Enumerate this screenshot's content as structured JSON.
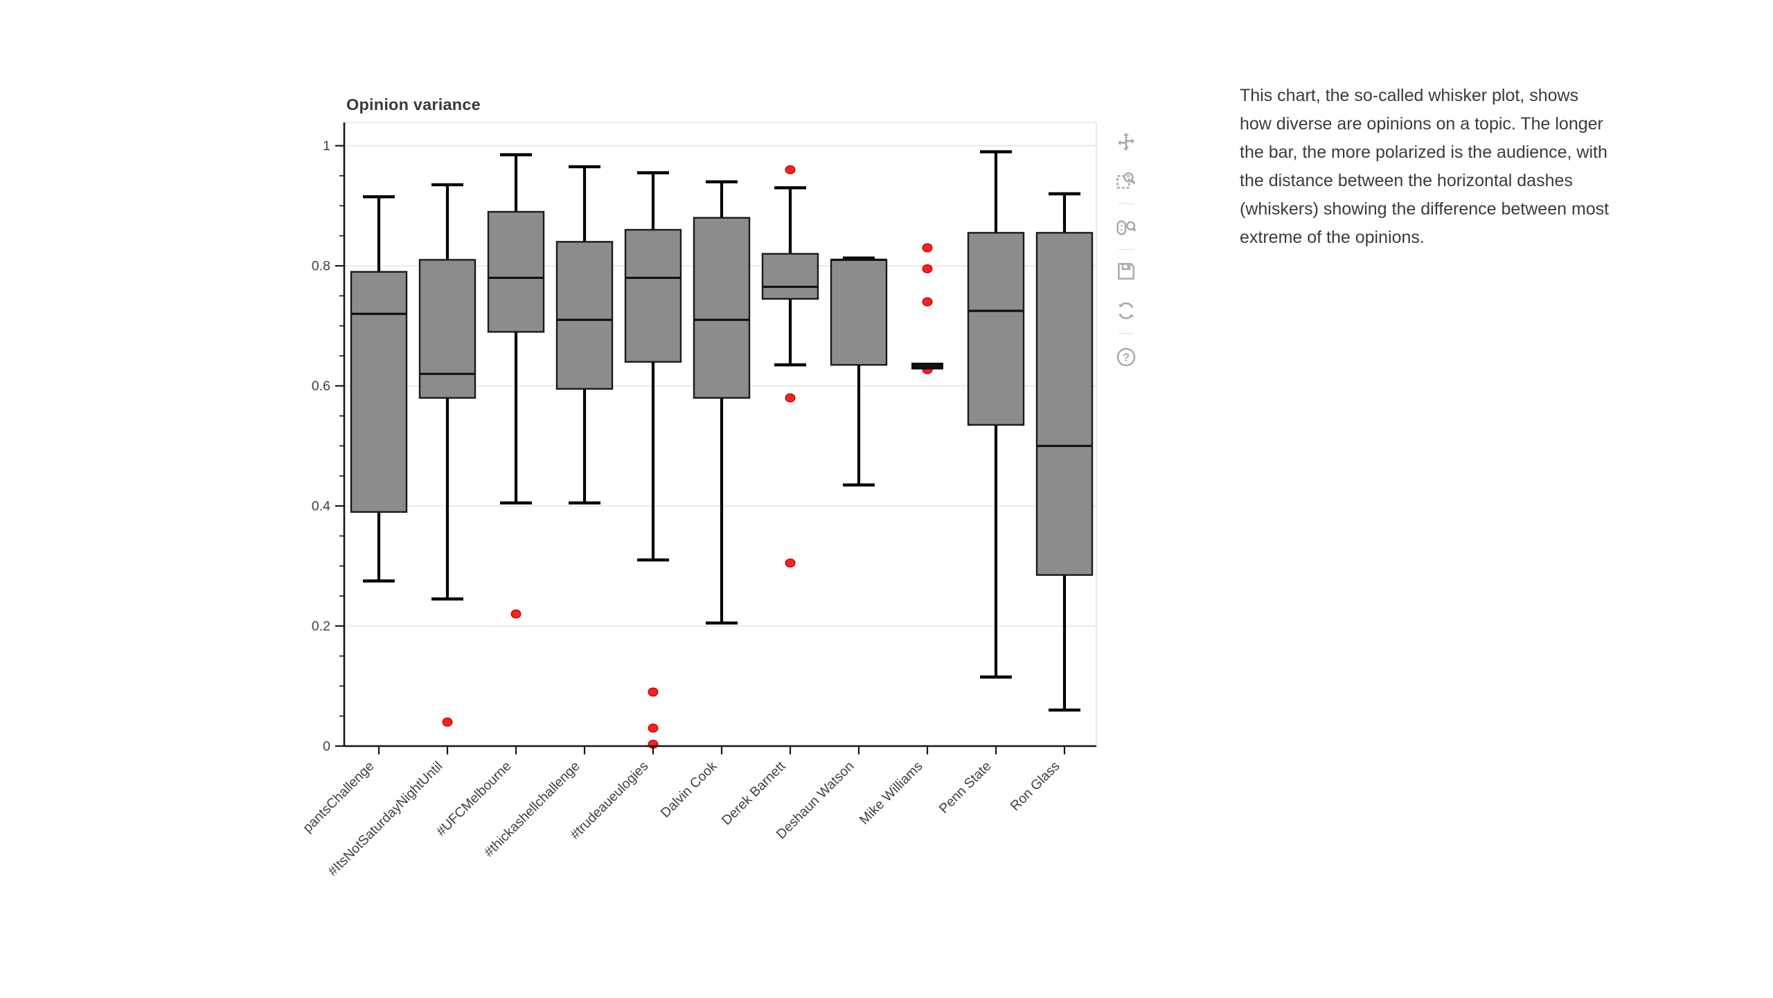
{
  "chart_data": {
    "type": "boxplot",
    "title": "Opinion variance",
    "xlabel": "",
    "ylabel": "",
    "ylim": [
      0,
      1.04
    ],
    "yticks": [
      0,
      0.2,
      0.4,
      0.6,
      0.8,
      1
    ],
    "ytick_labels": [
      "0",
      "0.2",
      "0.4",
      "0.6",
      "0.8",
      "1"
    ],
    "grid": "horizontal",
    "legend": "none",
    "categories": [
      "pantsChallenge",
      "#ItsNotSaturdayNightUntil",
      "#UFCMelbourne",
      "#thickashellchallenge",
      "#trudeaueulogies",
      "Dalvin Cook",
      "Derek Barnett",
      "Deshaun Watson",
      "Mike Williams",
      "Penn State",
      "Ron Glass"
    ],
    "series": [
      {
        "name": "pantsChallenge",
        "whisker_low": 0.275,
        "q1": 0.39,
        "median": 0.72,
        "q3": 0.79,
        "whisker_high": 0.915,
        "outliers": []
      },
      {
        "name": "#ItsNotSaturdayNightUntil",
        "whisker_low": 0.245,
        "q1": 0.58,
        "median": 0.62,
        "q3": 0.81,
        "whisker_high": 0.935,
        "outliers": [
          0.04
        ]
      },
      {
        "name": "#UFCMelbourne",
        "whisker_low": 0.405,
        "q1": 0.69,
        "median": 0.78,
        "q3": 0.89,
        "whisker_high": 0.985,
        "outliers": [
          0.22
        ]
      },
      {
        "name": "#thickashellchallenge",
        "whisker_low": 0.405,
        "q1": 0.595,
        "median": 0.71,
        "q3": 0.84,
        "whisker_high": 0.965,
        "outliers": []
      },
      {
        "name": "#trudeaueulogies",
        "whisker_low": 0.31,
        "q1": 0.64,
        "median": 0.78,
        "q3": 0.86,
        "whisker_high": 0.955,
        "outliers": [
          0.09,
          0.03,
          0.003
        ]
      },
      {
        "name": "Dalvin Cook",
        "whisker_low": 0.205,
        "q1": 0.58,
        "median": 0.71,
        "q3": 0.88,
        "whisker_high": 0.94,
        "outliers": []
      },
      {
        "name": "Derek Barnett",
        "whisker_low": 0.635,
        "q1": 0.745,
        "median": 0.765,
        "q3": 0.82,
        "whisker_high": 0.93,
        "outliers": [
          0.96,
          0.58,
          0.305
        ]
      },
      {
        "name": "Deshaun Watson",
        "whisker_low": 0.435,
        "q1": 0.635,
        "median": 0.81,
        "q3": 0.81,
        "whisker_high": 0.813,
        "outliers": []
      },
      {
        "name": "Mike Williams",
        "whisker_low": 0.63,
        "q1": 0.63,
        "median": 0.633,
        "q3": 0.636,
        "whisker_high": 0.636,
        "outliers": [
          0.83,
          0.795,
          0.74,
          0.627
        ]
      },
      {
        "name": "Penn State",
        "whisker_low": 0.115,
        "q1": 0.535,
        "median": 0.725,
        "q3": 0.855,
        "whisker_high": 0.99,
        "outliers": []
      },
      {
        "name": "Ron Glass",
        "whisker_low": 0.06,
        "q1": 0.285,
        "median": 0.5,
        "q3": 0.855,
        "whisker_high": 0.92,
        "outliers": []
      }
    ]
  },
  "toolbar": {
    "active_tool": "pan",
    "accent_color": "#29abe2",
    "icon_color": "#a6abb0",
    "icons": [
      {
        "name": "pan-tool-icon",
        "active": true
      },
      {
        "name": "box-zoom-icon",
        "active": false
      },
      {
        "name": "wheel-zoom-icon",
        "active": false
      },
      {
        "name": "save-icon",
        "active": false
      },
      {
        "name": "reset-icon",
        "active": false
      },
      {
        "name": "help-icon",
        "active": false
      }
    ]
  },
  "description_panel": {
    "text": "This chart, the so-called whisker plot, shows\nhow diverse are opinions on a topic. The longer\nthe bar, the more polarized is the audience, with\nthe distance between the horizontal dashes\n(whiskers) showing the difference between most\nextreme of the opinions."
  },
  "colors": {
    "title": "#3a3a3a",
    "box_fill": "#8c8c8c",
    "box_stroke": "#1a1a1a",
    "median": "#111111",
    "whisker": "#000000",
    "outlier_fill": "#ff2121",
    "outlier_stroke": "#c40000",
    "grid": "#e5e5e5",
    "axis": "#161616",
    "tick_label": "#3f3f3f"
  }
}
